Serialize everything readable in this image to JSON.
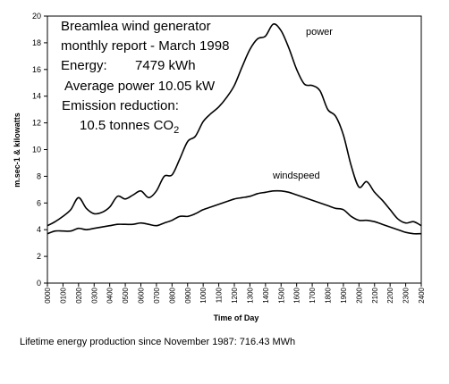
{
  "chart_data": {
    "type": "line",
    "title_lines": [
      "Breamlea wind generator",
      "monthly report - March 1998"
    ],
    "energy_label": "Energy:",
    "energy_value": "7479 kWh",
    "average_power": "Average power 10.05 kW",
    "emission_label": "Emission reduction:",
    "emission_value_prefix": "10.5 tonnes CO",
    "emission_value_sub": "2",
    "xlabel": "Time of Day",
    "ylabel": "m.sec-1 & kilowatts",
    "ylim": [
      0,
      20
    ],
    "yticks": [
      "0",
      "2",
      "4",
      "6",
      "8",
      "10",
      "12",
      "14",
      "16",
      "18",
      "20"
    ],
    "x_categories": [
      "0000",
      "0100",
      "0200",
      "0300",
      "0400",
      "0500",
      "0600",
      "0700",
      "0800",
      "0900",
      "1000",
      "1100",
      "1200",
      "1300",
      "1400",
      "1500",
      "1600",
      "1700",
      "1800",
      "1900",
      "2000",
      "2100",
      "2200",
      "2300",
      "2400"
    ],
    "x": [
      0,
      0.5,
      1,
      1.5,
      2,
      2.5,
      3,
      3.5,
      4,
      4.5,
      5,
      5.5,
      6,
      6.5,
      7,
      7.5,
      8,
      8.5,
      9,
      9.5,
      10,
      10.5,
      11,
      11.5,
      12,
      12.5,
      13,
      13.5,
      14,
      14.5,
      15,
      15.5,
      16,
      16.5,
      17,
      17.5,
      18,
      18.5,
      19,
      19.5,
      20,
      20.5,
      21,
      21.5,
      22,
      22.5,
      23,
      23.5,
      24
    ],
    "series": [
      {
        "name": "power",
        "color": "#000000",
        "values": [
          4.3,
          4.6,
          5.0,
          5.5,
          6.4,
          5.6,
          5.2,
          5.3,
          5.7,
          6.5,
          6.3,
          6.6,
          6.9,
          6.4,
          6.9,
          8.0,
          8.1,
          9.3,
          10.6,
          11.0,
          12.1,
          12.7,
          13.2,
          13.9,
          14.8,
          16.2,
          17.5,
          18.3,
          18.5,
          19.4,
          18.9,
          17.6,
          16.0,
          14.9,
          14.8,
          14.4,
          13.0,
          12.5,
          11.1,
          8.8,
          7.2,
          7.6,
          6.8,
          6.2,
          5.5,
          4.8,
          4.5,
          4.6,
          4.3
        ]
      },
      {
        "name": "windspeed",
        "color": "#000000",
        "values": [
          3.7,
          3.9,
          3.9,
          3.9,
          4.1,
          4.0,
          4.1,
          4.2,
          4.3,
          4.4,
          4.4,
          4.4,
          4.5,
          4.4,
          4.3,
          4.5,
          4.7,
          5.0,
          5.0,
          5.2,
          5.5,
          5.7,
          5.9,
          6.1,
          6.3,
          6.4,
          6.5,
          6.7,
          6.8,
          6.9,
          6.9,
          6.8,
          6.6,
          6.4,
          6.2,
          6.0,
          5.8,
          5.6,
          5.5,
          5.0,
          4.7,
          4.7,
          4.6,
          4.4,
          4.2,
          4.0,
          3.8,
          3.7,
          3.7
        ]
      }
    ],
    "grid": false,
    "legend": "inline labels"
  },
  "footer": {
    "text": "Lifetime energy production since  November 1987:  716.43 MWh"
  }
}
